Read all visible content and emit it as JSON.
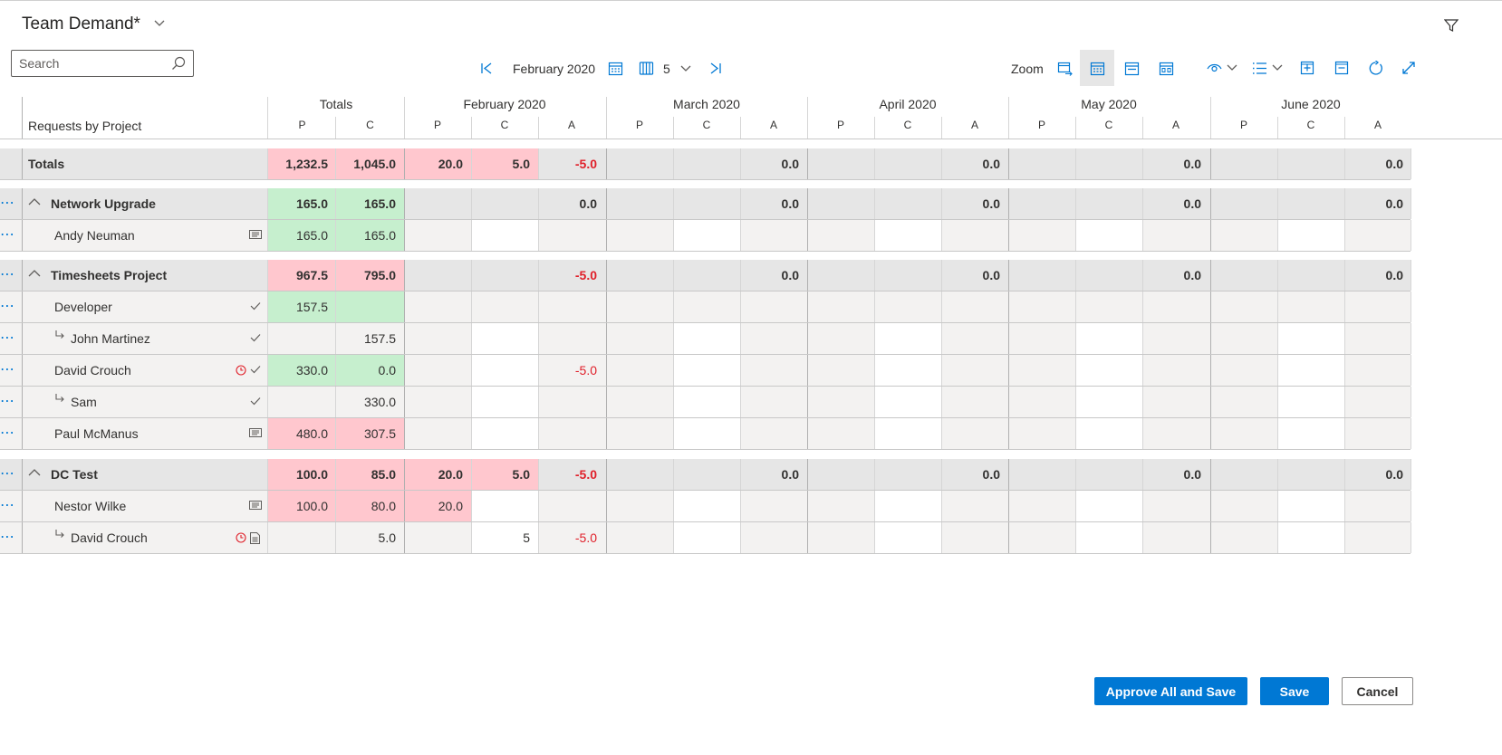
{
  "header": {
    "title": "Team Demand*"
  },
  "search": {
    "placeholder": "Search"
  },
  "nav": {
    "period": "February 2020",
    "column_count": "5"
  },
  "toolbar": {
    "zoom_label": "Zoom"
  },
  "grid": {
    "row_header_title": "Requests by Project",
    "totals_column_label": "Totals",
    "months": [
      "February 2020",
      "March 2020",
      "April 2020",
      "May 2020",
      "June 2020"
    ],
    "sub_labels": {
      "p": "P",
      "c": "C",
      "a": "A"
    },
    "totals_row": {
      "label": "Totals",
      "totals": [
        "1,232.5",
        "1,045.0"
      ],
      "months": [
        [
          "20.0",
          "5.0",
          "-5.0"
        ],
        [
          "",
          "",
          "0.0"
        ],
        [
          "",
          "",
          "0.0"
        ],
        [
          "",
          "",
          "0.0"
        ],
        [
          "",
          "",
          "0.0"
        ]
      ]
    },
    "groups": [
      {
        "label": "Network Upgrade",
        "totals": [
          "165.0",
          "165.0"
        ],
        "months": [
          [
            "",
            "",
            "0.0"
          ],
          [
            "",
            "",
            "0.0"
          ],
          [
            "",
            "",
            "0.0"
          ],
          [
            "",
            "",
            "0.0"
          ],
          [
            "",
            "",
            "0.0"
          ]
        ],
        "rows": [
          {
            "label": "Andy Neuman",
            "totals": [
              "165.0",
              "165.0"
            ],
            "months": [
              [
                "",
                "",
                ""
              ],
              [
                "",
                "",
                ""
              ],
              [
                "",
                "",
                ""
              ],
              [
                "",
                "",
                ""
              ],
              [
                "",
                "",
                ""
              ]
            ]
          }
        ]
      },
      {
        "label": "Timesheets Project",
        "totals": [
          "967.5",
          "795.0"
        ],
        "months": [
          [
            "",
            "",
            "-5.0"
          ],
          [
            "",
            "",
            "0.0"
          ],
          [
            "",
            "",
            "0.0"
          ],
          [
            "",
            "",
            "0.0"
          ],
          [
            "",
            "",
            "0.0"
          ]
        ],
        "rows": [
          {
            "label": "Developer",
            "totals": [
              "157.5",
              ""
            ],
            "months": [
              [
                "",
                "",
                ""
              ],
              [
                "",
                "",
                ""
              ],
              [
                "",
                "",
                ""
              ],
              [
                "",
                "",
                ""
              ],
              [
                "",
                "",
                ""
              ]
            ]
          },
          {
            "label": "John Martinez",
            "totals": [
              "",
              "157.5"
            ],
            "months": [
              [
                "",
                "",
                ""
              ],
              [
                "",
                "",
                ""
              ],
              [
                "",
                "",
                ""
              ],
              [
                "",
                "",
                ""
              ],
              [
                "",
                "",
                ""
              ]
            ]
          },
          {
            "label": "David Crouch",
            "totals": [
              "330.0",
              "0.0"
            ],
            "months": [
              [
                "",
                "",
                "-5.0"
              ],
              [
                "",
                "",
                ""
              ],
              [
                "",
                "",
                ""
              ],
              [
                "",
                "",
                ""
              ],
              [
                "",
                "",
                ""
              ]
            ]
          },
          {
            "label": "Sam",
            "totals": [
              "",
              "330.0"
            ],
            "months": [
              [
                "",
                "",
                ""
              ],
              [
                "",
                "",
                ""
              ],
              [
                "",
                "",
                ""
              ],
              [
                "",
                "",
                ""
              ],
              [
                "",
                "",
                ""
              ]
            ]
          },
          {
            "label": "Paul McManus",
            "totals": [
              "480.0",
              "307.5"
            ],
            "months": [
              [
                "",
                "",
                ""
              ],
              [
                "",
                "",
                ""
              ],
              [
                "",
                "",
                ""
              ],
              [
                "",
                "",
                ""
              ],
              [
                "",
                "",
                ""
              ]
            ]
          }
        ]
      },
      {
        "label": "DC Test",
        "totals": [
          "100.0",
          "85.0"
        ],
        "months": [
          [
            "20.0",
            "5.0",
            "-5.0"
          ],
          [
            "",
            "",
            "0.0"
          ],
          [
            "",
            "",
            "0.0"
          ],
          [
            "",
            "",
            "0.0"
          ],
          [
            "",
            "",
            "0.0"
          ]
        ],
        "rows": [
          {
            "label": "Nestor Wilke",
            "totals": [
              "100.0",
              "80.0"
            ],
            "months": [
              [
                "20.0",
                "",
                ""
              ],
              [
                "",
                "",
                ""
              ],
              [
                "",
                "",
                ""
              ],
              [
                "",
                "",
                ""
              ],
              [
                "",
                "",
                ""
              ]
            ]
          },
          {
            "label": "David Crouch",
            "totals": [
              "",
              "5.0"
            ],
            "months": [
              [
                "",
                "5",
                "-5.0"
              ],
              [
                "",
                "",
                ""
              ],
              [
                "",
                "",
                ""
              ],
              [
                "",
                "",
                ""
              ],
              [
                "",
                "",
                ""
              ]
            ]
          }
        ]
      }
    ]
  },
  "buttons": {
    "approve_all": "Approve All and Save",
    "save": "Save",
    "cancel": "Cancel"
  },
  "colors": {
    "accent": "#0078d4",
    "over": "#ffc7ce",
    "ok": "#c6efce",
    "negative": "#e0202a",
    "group_bg": "#e6e6e6"
  }
}
